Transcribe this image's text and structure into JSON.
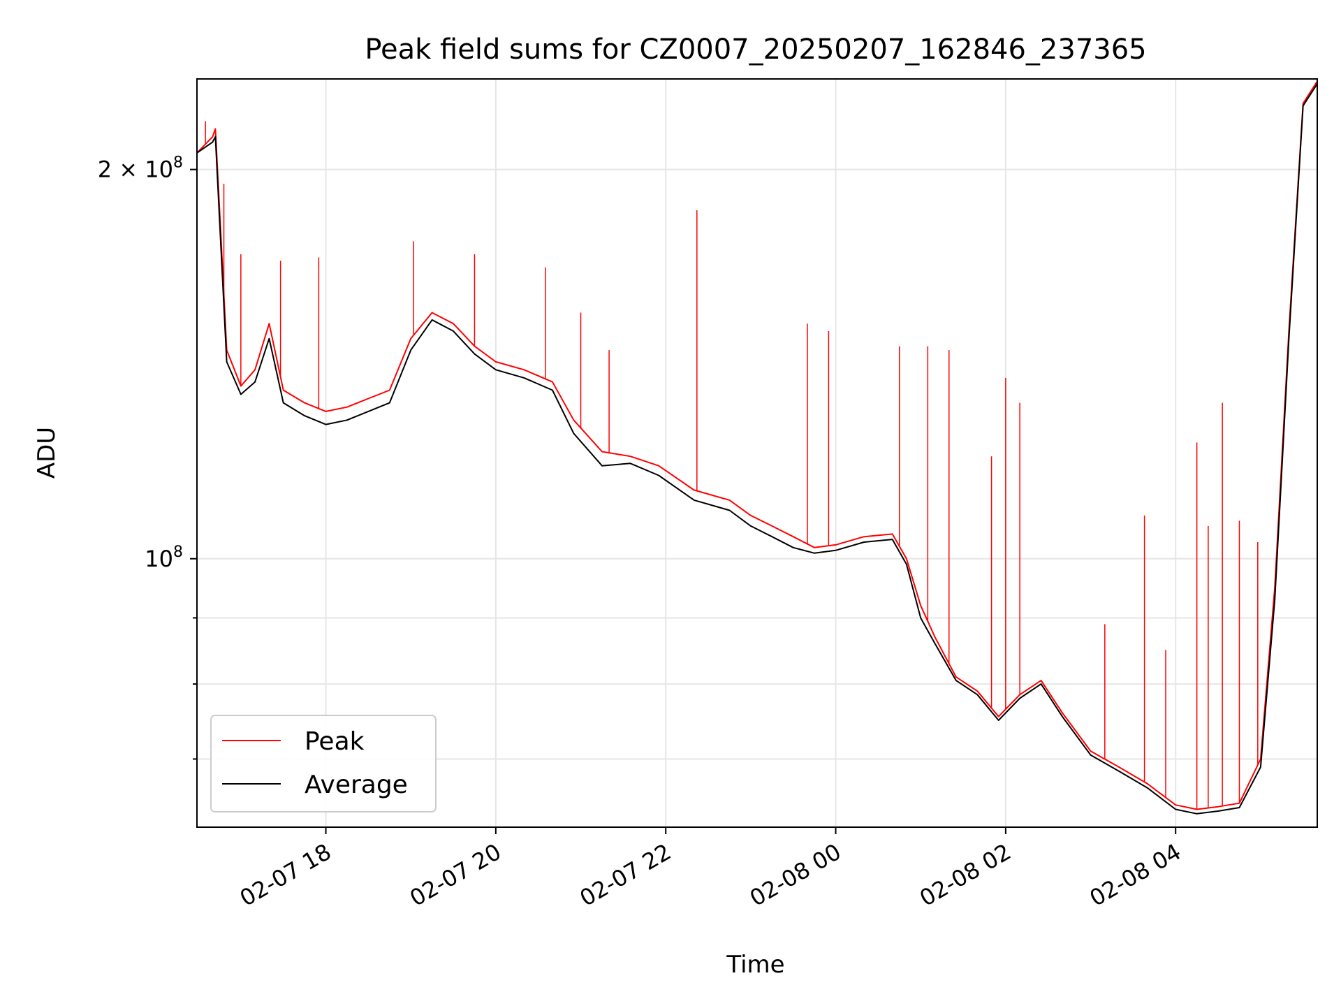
{
  "chart_data": {
    "type": "line",
    "title": "Peak field sums for CZ0007_20250207_162846_237365",
    "xlabel": "Time",
    "ylabel": "ADU",
    "x_unit": "datetime",
    "x_range": [
      "2025-02-07 16:29",
      "2025-02-08 05:40"
    ],
    "y_scale": "log",
    "ylim": [
      62000000,
      235000000
    ],
    "grid": true,
    "legend_position": "lower-left",
    "x_ticks": [
      {
        "value": "2025-02-07 18:00",
        "label": "02-07 18"
      },
      {
        "value": "2025-02-07 20:00",
        "label": "02-07 20"
      },
      {
        "value": "2025-02-07 22:00",
        "label": "02-07 22"
      },
      {
        "value": "2025-02-08 00:00",
        "label": "02-08 00"
      },
      {
        "value": "2025-02-08 02:00",
        "label": "02-08 02"
      },
      {
        "value": "2025-02-08 04:00",
        "label": "02-08 04"
      }
    ],
    "y_major_ticks": [
      {
        "value": 100000000,
        "label_base": "10",
        "label_exp": "8",
        "label_prefix": ""
      },
      {
        "value": 200000000,
        "label_base": "10",
        "label_exp": "8",
        "label_prefix": "2 × "
      }
    ],
    "y_minor_ticks": [
      70000000,
      80000000,
      90000000
    ],
    "series": [
      {
        "name": "Peak",
        "color": "#ff0000",
        "x": [
          "2025-02-07 16:29",
          "2025-02-07 16:40",
          "2025-02-07 16:42",
          "2025-02-07 16:50",
          "2025-02-07 17:00",
          "2025-02-07 17:10",
          "2025-02-07 17:20",
          "2025-02-07 17:30",
          "2025-02-07 17:45",
          "2025-02-07 18:00",
          "2025-02-07 18:15",
          "2025-02-07 18:30",
          "2025-02-07 18:45",
          "2025-02-07 19:00",
          "2025-02-07 19:15",
          "2025-02-07 19:30",
          "2025-02-07 19:45",
          "2025-02-07 20:00",
          "2025-02-07 20:20",
          "2025-02-07 20:40",
          "2025-02-07 20:55",
          "2025-02-07 21:15",
          "2025-02-07 21:35",
          "2025-02-07 21:55",
          "2025-02-07 22:20",
          "2025-02-07 22:45",
          "2025-02-07 23:00",
          "2025-02-07 23:15",
          "2025-02-07 23:30",
          "2025-02-07 23:45",
          "2025-02-08 00:00",
          "2025-02-08 00:20",
          "2025-02-08 00:40",
          "2025-02-08 00:50",
          "2025-02-08 01:00",
          "2025-02-08 01:10",
          "2025-02-08 01:25",
          "2025-02-08 01:40",
          "2025-02-08 01:55",
          "2025-02-08 02:10",
          "2025-02-08 02:25",
          "2025-02-08 02:40",
          "2025-02-08 03:00",
          "2025-02-08 03:20",
          "2025-02-08 03:40",
          "2025-02-08 04:00",
          "2025-02-08 04:15",
          "2025-02-08 04:30",
          "2025-02-08 04:45",
          "2025-02-08 05:00",
          "2025-02-08 05:10",
          "2025-02-08 05:20",
          "2025-02-08 05:30",
          "2025-02-08 05:40"
        ],
        "y": [
          206000000,
          212000000,
          215000000,
          145000000,
          136000000,
          140000000,
          152000000,
          135000000,
          132000000,
          130000000,
          131000000,
          133000000,
          135000000,
          148000000,
          155000000,
          152000000,
          146000000,
          142000000,
          140000000,
          137000000,
          128000000,
          121000000,
          120000000,
          118000000,
          113000000,
          111000000,
          108000000,
          106000000,
          104000000,
          102000000,
          102500000,
          104000000,
          104500000,
          100000000,
          92000000,
          87000000,
          81000000,
          79000000,
          75500000,
          78500000,
          80500000,
          76000000,
          71000000,
          69000000,
          67000000,
          64500000,
          64000000,
          64300000,
          64700000,
          70000000,
          95000000,
          150000000,
          225000000,
          234000000
        ],
        "spikes": [
          {
            "x": "2025-02-07 16:35",
            "y": 218000000
          },
          {
            "x": "2025-02-07 16:48",
            "y": 195000000
          },
          {
            "x": "2025-02-07 17:00",
            "y": 172000000
          },
          {
            "x": "2025-02-07 17:28",
            "y": 170000000
          },
          {
            "x": "2025-02-07 17:55",
            "y": 171000000
          },
          {
            "x": "2025-02-07 19:02",
            "y": 176000000
          },
          {
            "x": "2025-02-07 19:45",
            "y": 172000000
          },
          {
            "x": "2025-02-07 20:35",
            "y": 168000000
          },
          {
            "x": "2025-02-07 21:00",
            "y": 155000000
          },
          {
            "x": "2025-02-07 21:20",
            "y": 145000000
          },
          {
            "x": "2025-02-07 22:22",
            "y": 186000000
          },
          {
            "x": "2025-02-07 23:40",
            "y": 152000000
          },
          {
            "x": "2025-02-07 23:55",
            "y": 150000000
          },
          {
            "x": "2025-02-08 00:45",
            "y": 146000000
          },
          {
            "x": "2025-02-08 01:05",
            "y": 146000000
          },
          {
            "x": "2025-02-08 01:20",
            "y": 145000000
          },
          {
            "x": "2025-02-08 01:50",
            "y": 120000000
          },
          {
            "x": "2025-02-08 02:00",
            "y": 138000000
          },
          {
            "x": "2025-02-08 02:10",
            "y": 132000000
          },
          {
            "x": "2025-02-08 03:10",
            "y": 89000000
          },
          {
            "x": "2025-02-08 03:38",
            "y": 108000000
          },
          {
            "x": "2025-02-08 03:53",
            "y": 85000000
          },
          {
            "x": "2025-02-08 04:15",
            "y": 123000000
          },
          {
            "x": "2025-02-08 04:23",
            "y": 106000000
          },
          {
            "x": "2025-02-08 04:33",
            "y": 132000000
          },
          {
            "x": "2025-02-08 04:45",
            "y": 107000000
          },
          {
            "x": "2025-02-08 04:58",
            "y": 103000000
          }
        ]
      },
      {
        "name": "Average",
        "color": "#000000",
        "x": [
          "2025-02-07 16:29",
          "2025-02-07 16:40",
          "2025-02-07 16:42",
          "2025-02-07 16:50",
          "2025-02-07 17:00",
          "2025-02-07 17:10",
          "2025-02-07 17:20",
          "2025-02-07 17:30",
          "2025-02-07 17:45",
          "2025-02-07 18:00",
          "2025-02-07 18:15",
          "2025-02-07 18:30",
          "2025-02-07 18:45",
          "2025-02-07 19:00",
          "2025-02-07 19:15",
          "2025-02-07 19:30",
          "2025-02-07 19:45",
          "2025-02-07 20:00",
          "2025-02-07 20:20",
          "2025-02-07 20:40",
          "2025-02-07 20:55",
          "2025-02-07 21:15",
          "2025-02-07 21:35",
          "2025-02-07 21:55",
          "2025-02-07 22:20",
          "2025-02-07 22:45",
          "2025-02-07 23:00",
          "2025-02-07 23:15",
          "2025-02-07 23:30",
          "2025-02-07 23:45",
          "2025-02-08 00:00",
          "2025-02-08 00:20",
          "2025-02-08 00:40",
          "2025-02-08 00:50",
          "2025-02-08 01:00",
          "2025-02-08 01:10",
          "2025-02-08 01:25",
          "2025-02-08 01:40",
          "2025-02-08 01:55",
          "2025-02-08 02:10",
          "2025-02-08 02:25",
          "2025-02-08 02:40",
          "2025-02-08 03:00",
          "2025-02-08 03:20",
          "2025-02-08 03:40",
          "2025-02-08 04:00",
          "2025-02-08 04:15",
          "2025-02-08 04:30",
          "2025-02-08 04:45",
          "2025-02-08 05:00",
          "2025-02-08 05:10",
          "2025-02-08 05:20",
          "2025-02-08 05:30",
          "2025-02-08 05:40"
        ],
        "y": [
          206000000,
          210000000,
          212000000,
          142000000,
          134000000,
          137000000,
          148000000,
          132000000,
          129000000,
          127000000,
          128000000,
          130000000,
          132000000,
          145000000,
          153000000,
          150000000,
          144000000,
          140000000,
          138000000,
          135000000,
          125000000,
          118000000,
          118500000,
          116000000,
          111000000,
          109000000,
          106000000,
          104000000,
          102000000,
          101000000,
          101500000,
          103000000,
          103500000,
          99000000,
          90000000,
          86000000,
          80500000,
          78500000,
          75000000,
          78000000,
          80000000,
          75500000,
          70500000,
          68500000,
          66500000,
          64000000,
          63500000,
          63800000,
          64200000,
          69000000,
          93000000,
          148000000,
          224000000,
          233000000
        ]
      }
    ]
  }
}
